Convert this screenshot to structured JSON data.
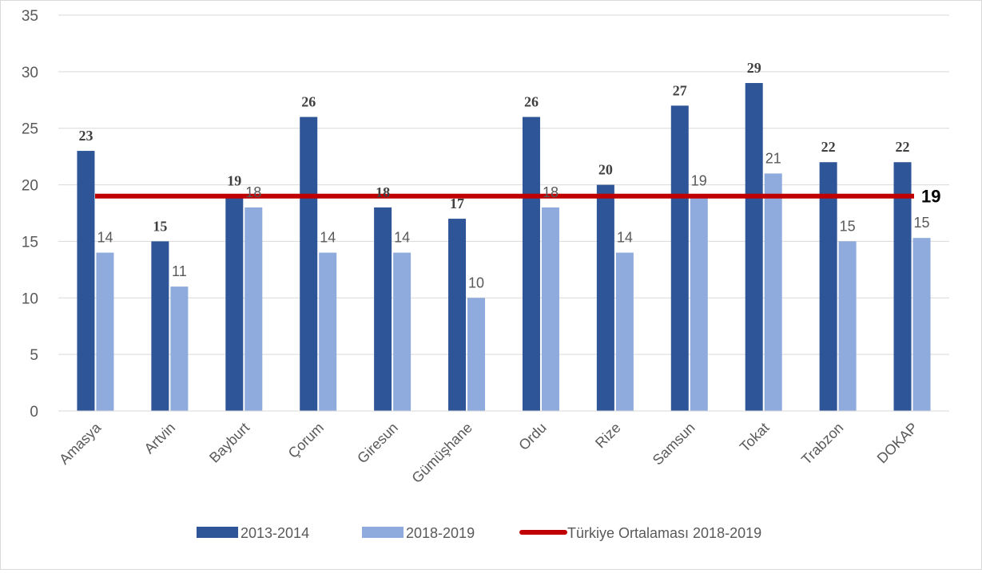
{
  "chart_data": {
    "type": "bar",
    "categories": [
      "Amasya",
      "Artvin",
      "Bayburt",
      "Çorum",
      "Giresun",
      "Gümüşhane",
      "Ordu",
      "Rize",
      "Samsun",
      "Tokat",
      "Trabzon",
      "DOKAP"
    ],
    "series": [
      {
        "name": "2013-2014",
        "values": [
          23,
          15,
          19,
          26,
          18,
          17,
          26,
          20,
          27,
          29,
          22,
          22
        ],
        "labels": [
          "23",
          "15",
          "19",
          "26",
          "18",
          "17",
          "26",
          "20",
          "27",
          "29",
          "22",
          "22"
        ],
        "color": "#2e5597"
      },
      {
        "name": "2018-2019",
        "values": [
          14,
          11,
          18,
          14,
          14,
          10,
          18,
          14,
          19,
          21,
          15,
          15.3
        ],
        "labels": [
          "14",
          "11",
          "18",
          "14",
          "14",
          "10",
          "18",
          "14",
          "19",
          "21",
          "15",
          "15"
        ],
        "color": "#8faadc"
      }
    ],
    "reference_line": {
      "name": "Türkiye Ortalaması 2018-2019",
      "value": 19,
      "label": "19",
      "color": "#c00000"
    },
    "yticks": [
      "0",
      "5",
      "10",
      "15",
      "20",
      "25",
      "30",
      "35"
    ],
    "ylim": [
      0,
      35
    ],
    "title": "",
    "xlabel": "",
    "ylabel": "",
    "grid": true,
    "legend": "bottom"
  }
}
